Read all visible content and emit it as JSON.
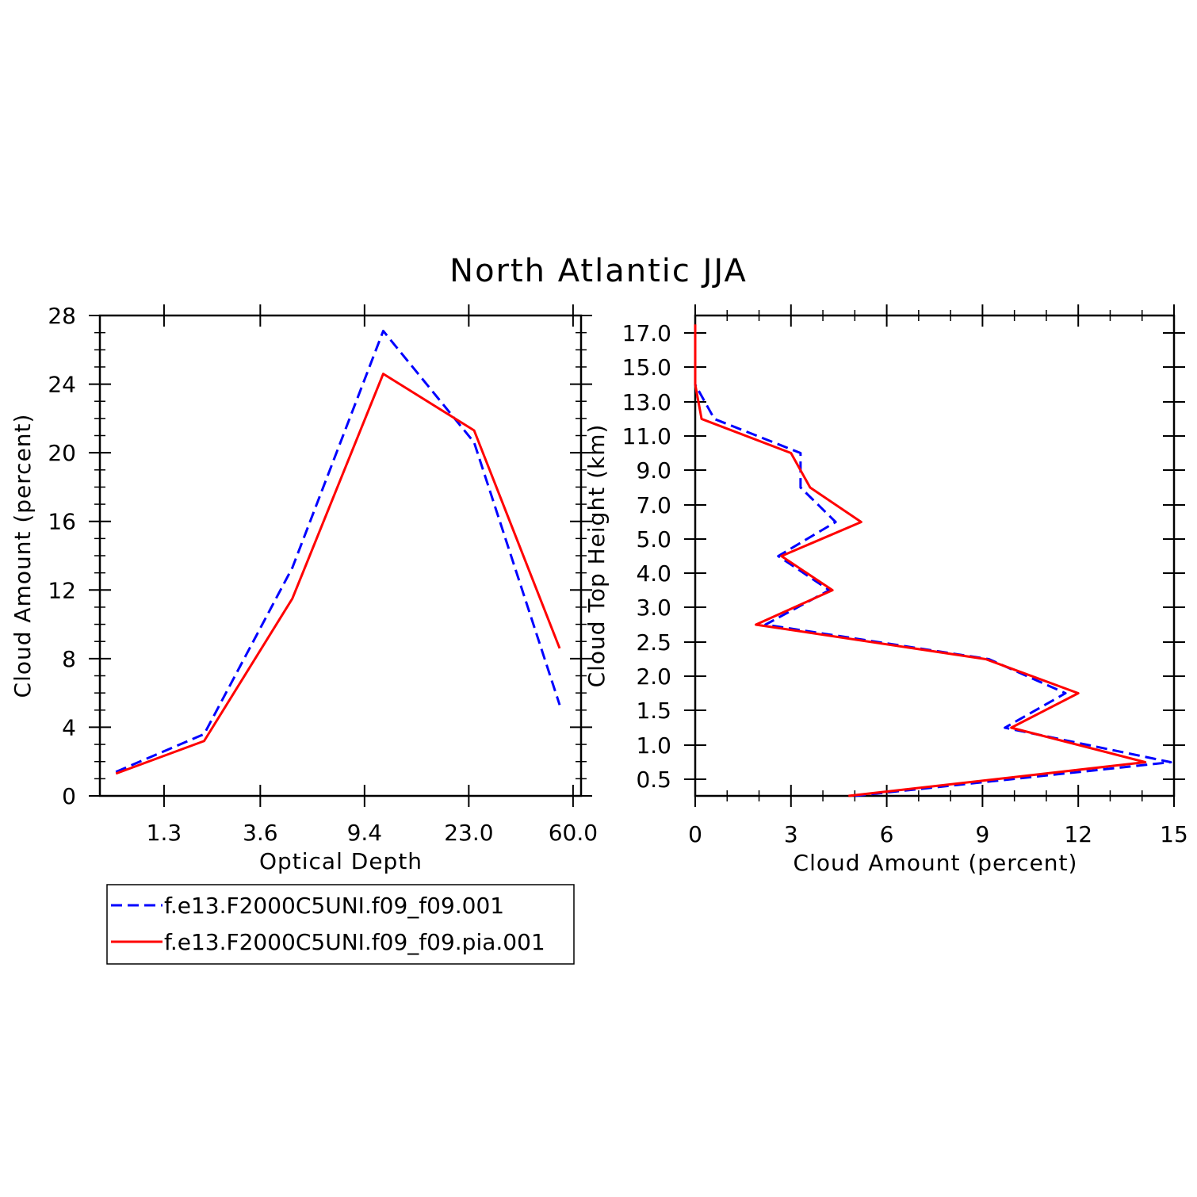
{
  "figure_title": "North Atlantic JJA",
  "colors": {
    "series_1": "#0000ff",
    "series_2": "#ff0000",
    "axis": "#000000"
  },
  "legend": [
    {
      "label": "f.e13.F2000C5UNI.f09_f09.001",
      "color": "#0000ff",
      "style": "dashed"
    },
    {
      "label": "f.e13.F2000C5UNI.f09_f09.pia.001",
      "color": "#ff0000",
      "style": "solid"
    }
  ],
  "chart_data": [
    {
      "type": "line",
      "xlabel": "Optical Depth",
      "ylabel": "Cloud Amount (percent)",
      "categories": [
        "1.3",
        "3.6",
        "9.4",
        "23.0",
        "60.0"
      ],
      "yticks": [
        "0",
        "4",
        "8",
        "12",
        "16",
        "20",
        "24",
        "28"
      ],
      "ylim": [
        0,
        28
      ],
      "grid": false,
      "series": [
        {
          "name": "f.e13.F2000C5UNI.f09_f09.001",
          "x": [
            0.3,
            1.95,
            3.6,
            5.3,
            7.0,
            8.6
          ],
          "values": [
            1.4,
            3.6,
            13.3,
            27.1,
            20.6,
            5.3
          ]
        },
        {
          "name": "f.e13.F2000C5UNI.f09_f09.pia.001",
          "x": [
            0.3,
            1.95,
            3.6,
            5.3,
            7.0,
            8.6
          ],
          "values": [
            1.3,
            3.2,
            11.5,
            24.6,
            21.3,
            8.6
          ]
        }
      ]
    },
    {
      "type": "line",
      "xlabel": "Cloud Amount (percent)",
      "ylabel": "Cloud Top Height (km)",
      "xticks": [
        "0",
        "3",
        "6",
        "9",
        "12",
        "15"
      ],
      "xlim": [
        0,
        15
      ],
      "yticks": [
        "0.5",
        "1.0",
        "1.5",
        "2.0",
        "2.5",
        "3.0",
        "4.0",
        "5.0",
        "7.0",
        "9.0",
        "11.0",
        "13.0",
        "15.0",
        "17.0"
      ],
      "grid": false,
      "series": [
        {
          "name": "f.e13.F2000C5UNI.f09_f09.001",
          "x": [
            5.0,
            14.9,
            9.7,
            11.6,
            9.2,
            2.2,
            4.2,
            2.6,
            4.4,
            3.3,
            3.3,
            0.6,
            0.0,
            0.0
          ],
          "values": [
            0.25,
            0.75,
            1.25,
            1.75,
            2.25,
            2.75,
            3.5,
            4.5,
            6.0,
            8.0,
            10.0,
            12.0,
            14.0,
            17.5
          ]
        },
        {
          "name": "f.e13.F2000C5UNI.f09_f09.pia.001",
          "x": [
            4.8,
            14.1,
            9.9,
            12.0,
            9.1,
            1.9,
            4.3,
            2.7,
            5.2,
            3.6,
            3.0,
            0.2,
            0.0,
            0.0
          ],
          "values": [
            0.25,
            0.75,
            1.25,
            1.75,
            2.25,
            2.75,
            3.5,
            4.5,
            6.0,
            8.0,
            10.0,
            12.0,
            14.0,
            17.5
          ]
        }
      ]
    }
  ]
}
